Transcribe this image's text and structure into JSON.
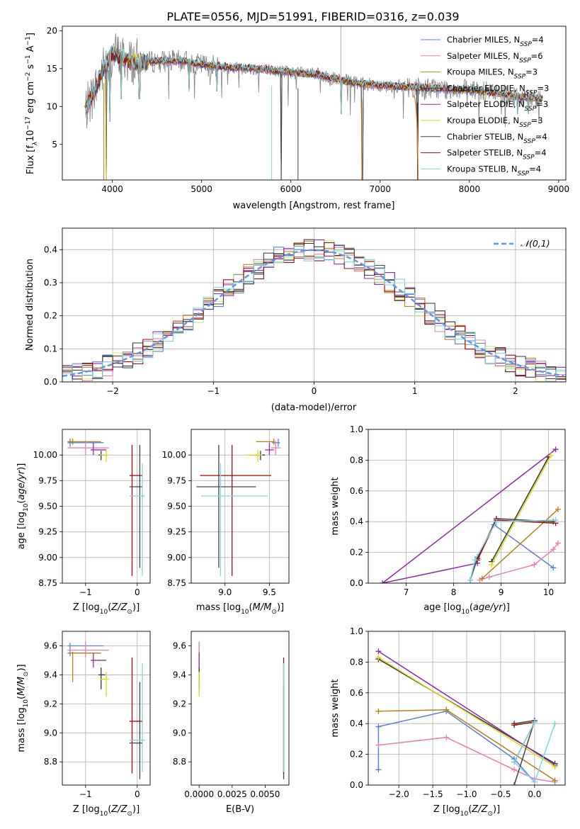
{
  "figure": {
    "title": "PLATE=0556, MJD=51991, FIBERID=0316, z=0.039"
  },
  "colors": {
    "Chabrier MILES": "#5b80d8",
    "Salpeter MILES": "#e87fb4",
    "Kroupa MILES": "#b57f1a",
    "Chabrier ELODIE": "#333333",
    "Salpeter ELODIE": "#8e2ba5",
    "Kroupa ELODIE": "#d8d81a",
    "Chabrier STELIB": "#444444",
    "Salpeter STELIB": "#9e0b0b",
    "Kroupa STELIB": "#7fd6dc",
    "gaussian": "#6495ed",
    "hist_orange": "#e0762a",
    "hist_lightgreen": "#c3ea7a"
  },
  "chart_data": [
    {
      "id": "spectrum",
      "type": "line",
      "title": "PLATE=0556, MJD=51991, FIBERID=0316, z=0.039",
      "xlabel": "wavelength [Angstrom, rest frame]",
      "ylabel": "Flux [f_λ 10^-17 erg cm^-2 s^-1 A^-1]",
      "xlim": [
        3440,
        9080
      ],
      "ylim": [
        0.3,
        20.6
      ],
      "xticks": [
        4000,
        5000,
        6000,
        7000,
        8000,
        9000
      ],
      "yticks": [
        5,
        10,
        15,
        20
      ],
      "grid": false,
      "legend_position": "top-right",
      "legend": [
        {
          "name": "Chabrier MILES",
          "nssp": "4"
        },
        {
          "name": "Salpeter MILES",
          "nssp": "6"
        },
        {
          "name": "Kroupa MILES",
          "nssp": "3"
        },
        {
          "name": "Chabrier ELODIE",
          "nssp": "3"
        },
        {
          "name": "Salpeter ELODIE",
          "nssp": "3"
        },
        {
          "name": "Kroupa ELODIE",
          "nssp": "3"
        },
        {
          "name": "Chabrier STELIB",
          "nssp": "4"
        },
        {
          "name": "Salpeter STELIB",
          "nssp": "4"
        },
        {
          "name": "Kroupa STELIB",
          "nssp": "4"
        }
      ],
      "continuum": [
        [
          3700,
          9.5
        ],
        [
          3800,
          12
        ],
        [
          3900,
          15
        ],
        [
          4000,
          17
        ],
        [
          4100,
          16.5
        ],
        [
          4200,
          16
        ],
        [
          4300,
          15.8
        ],
        [
          4500,
          16
        ],
        [
          4800,
          16
        ],
        [
          5000,
          15.5
        ],
        [
          5300,
          15.2
        ],
        [
          5600,
          15
        ],
        [
          6000,
          14.5
        ],
        [
          6300,
          14.2
        ],
        [
          6500,
          13.6
        ],
        [
          6800,
          13
        ],
        [
          7000,
          12.8
        ],
        [
          7300,
          12.6
        ],
        [
          7600,
          12.4
        ],
        [
          7800,
          12.3
        ],
        [
          8000,
          12.2
        ],
        [
          8300,
          11.8
        ],
        [
          8600,
          11.2
        ],
        [
          8800,
          11
        ]
      ],
      "dips": [
        [
          3934,
          0.3
        ],
        [
          3969,
          8
        ],
        [
          4102,
          11
        ],
        [
          4304,
          11
        ],
        [
          4861,
          12
        ],
        [
          5175,
          12
        ],
        [
          5892,
          0.3
        ],
        [
          6563,
          9
        ],
        [
          6800,
          0.3
        ],
        [
          7420,
          0.3
        ],
        [
          8498,
          10
        ],
        [
          8542,
          9
        ],
        [
          8662,
          9
        ]
      ]
    },
    {
      "id": "residuals",
      "type": "histogram",
      "xlabel": "(data-model)/error",
      "ylabel": "Normed distribution",
      "xlim": [
        -2.5,
        2.5
      ],
      "ylim": [
        0,
        0.465
      ],
      "xticks": [
        -2,
        -1,
        0,
        1,
        2
      ],
      "yticks": [
        0.0,
        0.1,
        0.2,
        0.3,
        0.4
      ],
      "grid": true,
      "legend_position": "top-right",
      "legend": [
        "𝒩(0,1)"
      ],
      "bin_width": 0.1
    },
    {
      "id": "age-vs-Z",
      "type": "scatter",
      "xlabel": "Z [log10(Z/Z⊙)]",
      "ylabel": "age [log10(age/yr)]",
      "xlim": [
        -1.45,
        0.25
      ],
      "ylim": [
        8.75,
        10.25
      ],
      "xticks": [
        -1,
        0
      ],
      "yticks": [
        8.75,
        9.0,
        9.25,
        9.5,
        9.75,
        10.0
      ],
      "grid": true
    },
    {
      "id": "age-vs-mass",
      "type": "scatter",
      "xlabel": "mass [log10(M/M⊙)]",
      "ylabel": "",
      "xlim": [
        8.62,
        9.72
      ],
      "ylim": [
        8.75,
        10.25
      ],
      "xticks": [
        9.0,
        9.5
      ],
      "yticks": [
        8.75,
        9.0,
        9.25,
        9.5,
        9.75,
        10.0
      ],
      "grid": true
    },
    {
      "id": "weight-vs-age",
      "type": "line",
      "xlabel": "age [log10(age/yr)]",
      "ylabel": "mass weight",
      "xlim": [
        6.2,
        10.35
      ],
      "ylim": [
        0,
        1
      ],
      "xticks": [
        7,
        8,
        9,
        10
      ],
      "yticks": [
        0.0,
        0.2,
        0.4,
        0.6,
        0.8,
        1.0
      ],
      "grid": true
    },
    {
      "id": "mass-vs-Z",
      "type": "scatter",
      "xlabel": "Z [log10(Z/Z⊙)]",
      "ylabel": "mass [log10(M/M⊙)]",
      "xlim": [
        -1.45,
        0.25
      ],
      "ylim": [
        8.64,
        9.7
      ],
      "xticks": [
        -1,
        0
      ],
      "yticks": [
        8.8,
        9.0,
        9.2,
        9.4,
        9.6
      ],
      "grid": true
    },
    {
      "id": "mass-vs-ebv",
      "type": "scatter",
      "xlabel": "E(B-V)",
      "ylabel": "",
      "xlim": [
        -0.0006,
        0.0068
      ],
      "ylim": [
        8.64,
        9.7
      ],
      "xticks": [
        0.0,
        0.0025,
        0.005
      ],
      "xtick_labels": [
        "0.0000",
        "0.0025",
        "0.0050"
      ],
      "yticks": [
        8.8,
        9.0,
        9.2,
        9.4,
        9.6
      ],
      "grid": false
    },
    {
      "id": "weight-vs-Z",
      "type": "line",
      "xlabel": "Z [log10(Z/Z⊙)]",
      "ylabel": "mass weight",
      "xlim": [
        -2.45,
        0.45
      ],
      "ylim": [
        0,
        1
      ],
      "xticks": [
        -2.0,
        -1.5,
        -1.0,
        -0.5,
        0.0
      ],
      "yticks": [
        0.0,
        0.2,
        0.4,
        0.6,
        0.8,
        1.0
      ],
      "grid": true
    }
  ],
  "models": [
    {
      "name": "Chabrier MILES",
      "age": 10.12,
      "age_lo": 10.08,
      "age_hi": 10.16,
      "Z": -1.3,
      "Zlo": -1.35,
      "Zhi": -0.65,
      "mass": 9.6,
      "mlo": 9.53,
      "mhi": 9.62,
      "ebv": 0.0,
      "ebv_lo": 0.0,
      "ebv_hi": 0.0,
      "wa": [
        [
          10.1,
          0.1
        ],
        [
          8.85,
          0.38
        ],
        [
          8.5,
          0.17
        ],
        [
          8.35,
          0.02
        ]
      ],
      "wz": [
        [
          -2.3,
          0.1
        ],
        [
          -2.3,
          0.38
        ],
        [
          -1.3,
          0.48
        ],
        [
          -0.3,
          0.17
        ],
        [
          0.0,
          0.02
        ]
      ]
    },
    {
      "name": "Salpeter MILES",
      "age": 10.07,
      "age_lo": 10.0,
      "age_hi": 10.14,
      "Z": -1.0,
      "Zlo": -1.35,
      "Zhi": -0.55,
      "mass": 9.57,
      "mlo": 9.52,
      "mhi": 9.63,
      "ebv": 0.0,
      "ebv_lo": 0.0,
      "ebv_hi": 0.0,
      "wa": [
        [
          10.2,
          0.26
        ],
        [
          10.1,
          0.22
        ],
        [
          9.7,
          0.12
        ],
        [
          8.75,
          0.04
        ],
        [
          8.55,
          0.02
        ]
      ],
      "wz": [
        [
          -2.3,
          0.26
        ],
        [
          -1.3,
          0.31
        ],
        [
          -0.3,
          0.1
        ],
        [
          0.0,
          0.04
        ],
        [
          0.3,
          0.02
        ]
      ]
    },
    {
      "name": "Kroupa MILES",
      "age": 10.13,
      "age_lo": 10.1,
      "age_hi": 10.16,
      "Z": -1.25,
      "Zlo": -1.35,
      "Zhi": -0.7,
      "mass": 9.55,
      "mlo": 9.35,
      "mhi": 9.56,
      "ebv": 0.0,
      "ebv_lo": 0.0,
      "ebv_hi": 0.0,
      "wa": [
        [
          10.2,
          0.48
        ],
        [
          8.6,
          0.03
        ]
      ],
      "wz": [
        [
          -2.3,
          0.48
        ],
        [
          -1.3,
          0.49
        ],
        [
          0.3,
          0.03
        ]
      ]
    },
    {
      "name": "Chabrier ELODIE",
      "age": 10.0,
      "age_lo": 9.95,
      "age_hi": 10.04,
      "Z": -0.7,
      "Zlo": -0.75,
      "Zhi": -0.62,
      "mass": 9.4,
      "mlo": 9.3,
      "mhi": 9.45,
      "ebv": 0.0,
      "ebv_lo": 0.0,
      "ebv_hi": 0.0,
      "wa": [
        [
          10.0,
          0.82
        ],
        [
          8.8,
          0.14
        ]
      ],
      "wz": [
        [
          -2.3,
          0.82
        ],
        [
          0.3,
          0.14
        ]
      ]
    },
    {
      "name": "Salpeter ELODIE",
      "age": 10.05,
      "age_lo": 10.0,
      "age_hi": 10.12,
      "Z": -0.85,
      "Zlo": -0.9,
      "Zhi": -0.6,
      "mass": 9.5,
      "mlo": 9.45,
      "mhi": 9.55,
      "ebv": 0.0,
      "ebv_lo": 0.0,
      "ebv_hi": 0.0,
      "wa": [
        [
          10.15,
          0.87
        ],
        [
          6.5,
          0.0
        ],
        [
          8.5,
          0.13
        ]
      ],
      "wz": [
        [
          -2.3,
          0.87
        ],
        [
          0.3,
          0.13
        ]
      ]
    },
    {
      "name": "Kroupa ELODIE",
      "age": 10.0,
      "age_lo": 9.93,
      "age_hi": 10.05,
      "Z": -0.6,
      "Zlo": -0.72,
      "Zhi": -0.55,
      "mass": 9.37,
      "mlo": 9.25,
      "mhi": 9.42,
      "ebv": 0.0,
      "ebv_lo": 0.0,
      "ebv_hi": 0.0,
      "wa": [
        [
          10.05,
          0.83
        ],
        [
          8.8,
          0.12
        ]
      ],
      "wz": [
        [
          -2.3,
          0.83
        ],
        [
          0.3,
          0.12
        ]
      ]
    },
    {
      "name": "Chabrier STELIB",
      "age": 9.69,
      "age_lo": 8.9,
      "age_hi": 10.1,
      "Z": 0.05,
      "Zlo": -0.15,
      "Zhi": 0.1,
      "mass": 8.93,
      "mlo": 8.68,
      "mhi": 9.35,
      "ebv": 0.0064,
      "ebv_lo": 0.0064,
      "ebv_hi": 0.0064,
      "wa": [
        [
          10.1,
          0.4
        ],
        [
          8.9,
          0.42
        ],
        [
          8.5,
          0.16
        ],
        [
          8.35,
          0.02
        ]
      ],
      "wz": [
        [
          -0.3,
          0.0
        ],
        [
          0.0,
          0.42
        ],
        [
          -0.3,
          0.4
        ]
      ]
    },
    {
      "name": "Salpeter STELIB",
      "age": 9.8,
      "age_lo": 8.82,
      "age_hi": 10.1,
      "Z": -0.1,
      "Zlo": -0.15,
      "Zhi": 0.1,
      "mass": 9.08,
      "mlo": 8.72,
      "mhi": 9.52,
      "ebv": 0.0064,
      "ebv_lo": 0.0064,
      "ebv_hi": 0.0064,
      "wa": [
        [
          10.15,
          0.39
        ],
        [
          8.9,
          0.41
        ],
        [
          8.5,
          0.15
        ]
      ],
      "wz": [
        [
          -0.3,
          0.39
        ],
        [
          0.0,
          0.41
        ],
        [
          -0.3,
          0.15
        ]
      ]
    },
    {
      "name": "Kroupa STELIB",
      "age": 9.6,
      "age_lo": 8.82,
      "age_hi": 9.92,
      "Z": 0.1,
      "Zlo": -0.15,
      "Zhi": 0.15,
      "mass": 8.95,
      "mlo": 8.73,
      "mhi": 9.48,
      "ebv": 0.0064,
      "ebv_lo": 0.0064,
      "ebv_hi": 0.0064,
      "wa": [
        [
          10.15,
          0.41
        ],
        [
          8.9,
          0.4
        ],
        [
          8.45,
          0.15
        ],
        [
          8.35,
          0.02
        ]
      ],
      "wz": [
        [
          0.3,
          0.4
        ],
        [
          0.0,
          0.02
        ],
        [
          -0.3,
          0.15
        ],
        [
          0.0,
          0.41
        ]
      ]
    }
  ]
}
